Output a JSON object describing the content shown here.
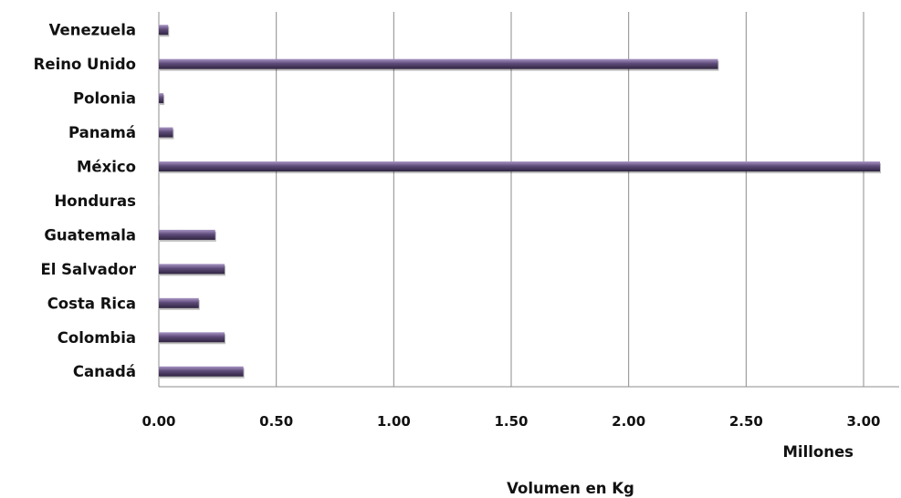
{
  "chart_data": {
    "type": "bar",
    "orientation": "horizontal",
    "categories": [
      "Venezuela",
      "Reino Unido",
      "Polonia",
      "Panamá",
      "México",
      "Honduras",
      "Guatemala",
      "El Salvador ",
      "Costa Rica",
      "Colombia",
      "Canadá"
    ],
    "values": [
      0.04,
      2.38,
      0.02,
      0.06,
      3.07,
      0.0,
      0.24,
      0.28,
      0.17,
      0.28,
      0.36
    ],
    "xlim": [
      0,
      3.1
    ],
    "xticks": [
      "0.00",
      "0.50",
      "1.00",
      "1.50",
      "2.00",
      "2.50",
      "3.00"
    ],
    "xtick_values": [
      0,
      0.5,
      1,
      1.5,
      2,
      2.5,
      3
    ],
    "xunit_label": "Millones",
    "xlabel": "Volumen en Kg",
    "grid": "vertical",
    "bar_color": "#5e4b79",
    "bar_highlight": "#a996c4",
    "bar_shadow": "#2f2440"
  }
}
